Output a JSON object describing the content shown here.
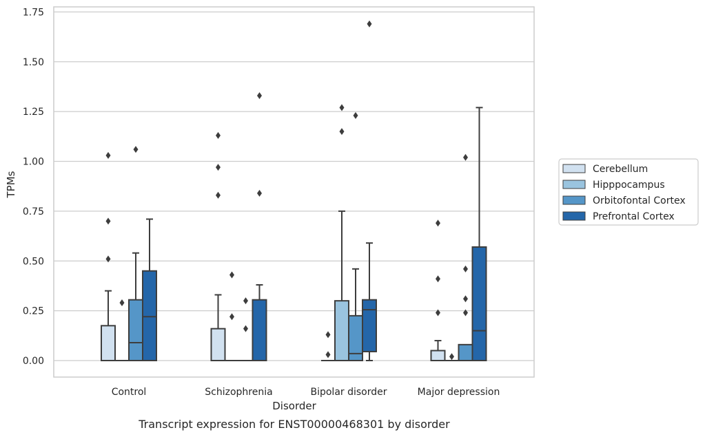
{
  "caption": "Transcript expression for ENST00000468301 by disorder",
  "chart_data": {
    "type": "box",
    "xlabel": "Disorder",
    "ylabel": "TPMs",
    "ylim": [
      -0.08,
      1.76
    ],
    "yticks": [
      0.0,
      0.25,
      0.5,
      0.75,
      1.0,
      1.25,
      1.5,
      1.75
    ],
    "ytick_labels": [
      "0.00",
      "0.25",
      "0.50",
      "0.75",
      "1.00",
      "1.25",
      "1.50",
      "1.75"
    ],
    "grid": "horizontal",
    "legend_position": "right",
    "categories": [
      "Control",
      "Schizophrenia",
      "Bipolar disorder",
      "Major depression"
    ],
    "series": [
      {
        "name": "Cerebellum",
        "color": "#d1e1f0",
        "boxes": [
          {
            "q1": 0.0,
            "median": 0.0,
            "q3": 0.175,
            "whisker_low": 0.0,
            "whisker_high": 0.35,
            "outliers": [
              0.51,
              0.7,
              1.03
            ]
          },
          {
            "q1": 0.0,
            "median": 0.0,
            "q3": 0.16,
            "whisker_low": 0.0,
            "whisker_high": 0.33,
            "outliers": [
              0.83,
              0.97,
              1.13
            ]
          },
          {
            "q1": 0.0,
            "median": 0.0,
            "q3": 0.0,
            "whisker_low": 0.0,
            "whisker_high": 0.0,
            "outliers": [
              0.03,
              0.13
            ]
          },
          {
            "q1": 0.0,
            "median": 0.0,
            "q3": 0.05,
            "whisker_low": 0.0,
            "whisker_high": 0.1,
            "outliers": [
              0.24,
              0.41,
              0.69
            ]
          }
        ]
      },
      {
        "name": "Hipppocampus",
        "color": "#9ac4df",
        "boxes": [
          {
            "q1": 0.0,
            "median": 0.0,
            "q3": 0.0,
            "whisker_low": 0.0,
            "whisker_high": 0.0,
            "outliers": [
              0.29
            ]
          },
          {
            "q1": 0.0,
            "median": 0.0,
            "q3": 0.0,
            "whisker_low": 0.0,
            "whisker_high": 0.0,
            "outliers": [
              0.22,
              0.43
            ]
          },
          {
            "q1": 0.0,
            "median": 0.0,
            "q3": 0.3,
            "whisker_low": 0.0,
            "whisker_high": 0.75,
            "outliers": [
              1.15,
              1.27
            ]
          },
          {
            "q1": 0.0,
            "median": 0.0,
            "q3": 0.0,
            "whisker_low": 0.0,
            "whisker_high": 0.0,
            "outliers": [
              0.02
            ]
          }
        ]
      },
      {
        "name": "Orbitofontal Cortex",
        "color": "#5596c8",
        "boxes": [
          {
            "q1": 0.0,
            "median": 0.09,
            "q3": 0.305,
            "whisker_low": 0.0,
            "whisker_high": 0.54,
            "outliers": [
              1.06
            ]
          },
          {
            "q1": 0.0,
            "median": 0.0,
            "q3": 0.0,
            "whisker_low": 0.0,
            "whisker_high": 0.0,
            "outliers": [
              0.16,
              0.3
            ]
          },
          {
            "q1": 0.0,
            "median": 0.035,
            "q3": 0.225,
            "whisker_low": 0.0,
            "whisker_high": 0.46,
            "outliers": [
              1.23
            ]
          },
          {
            "q1": 0.0,
            "median": 0.0,
            "q3": 0.08,
            "whisker_low": 0.0,
            "whisker_high": 0.08,
            "outliers": [
              0.24,
              0.31,
              0.46,
              1.02
            ]
          }
        ]
      },
      {
        "name": "Prefrontal Cortex",
        "color": "#2466a9",
        "boxes": [
          {
            "q1": 0.0,
            "median": 0.22,
            "q3": 0.45,
            "whisker_low": 0.0,
            "whisker_high": 0.71,
            "outliers": []
          },
          {
            "q1": 0.0,
            "median": 0.0,
            "q3": 0.305,
            "whisker_low": 0.0,
            "whisker_high": 0.38,
            "outliers": [
              0.84,
              1.33
            ]
          },
          {
            "q1": 0.045,
            "median": 0.255,
            "q3": 0.305,
            "whisker_low": 0.0,
            "whisker_high": 0.59,
            "outliers": [
              1.69
            ]
          },
          {
            "q1": 0.0,
            "median": 0.15,
            "q3": 0.57,
            "whisker_low": 0.0,
            "whisker_high": 1.27,
            "outliers": []
          }
        ]
      }
    ]
  }
}
